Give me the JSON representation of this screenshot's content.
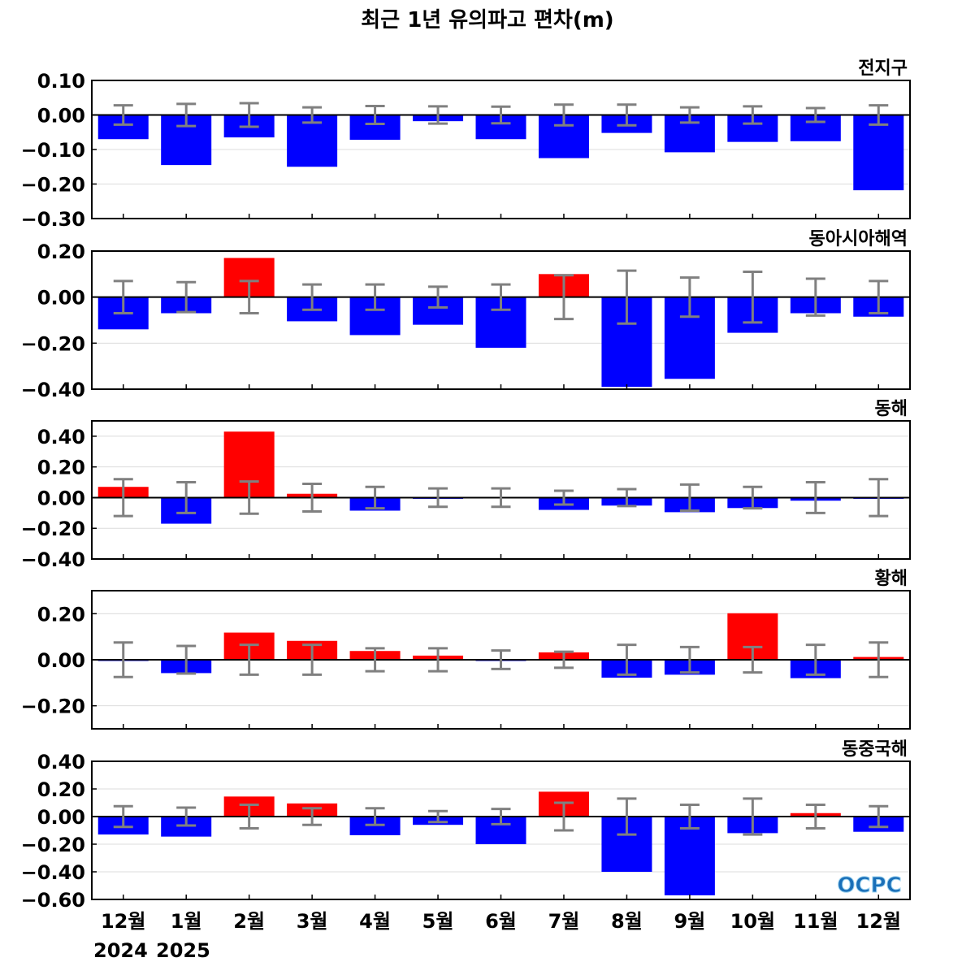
{
  "title": "최근 1년 유의파고 편차(m)",
  "logo": "OCPC",
  "colors": {
    "positive": "#ff0000",
    "negative": "#0000ff",
    "errorbar": "#808080",
    "zero_line": "#000000",
    "grid": "#dcdcdc"
  },
  "chart_data": [
    {
      "type": "bar",
      "title": "전지구",
      "categories": [
        "12월",
        "1월",
        "2월",
        "3월",
        "4월",
        "5월",
        "6월",
        "7월",
        "8월",
        "9월",
        "10월",
        "11월",
        "12월"
      ],
      "values": [
        -0.07,
        -0.145,
        -0.065,
        -0.15,
        -0.072,
        -0.018,
        -0.07,
        -0.125,
        -0.052,
        -0.108,
        -0.078,
        -0.076,
        -0.218
      ],
      "error": [
        0.028,
        0.032,
        0.034,
        0.022,
        0.026,
        0.025,
        0.024,
        0.03,
        0.03,
        0.022,
        0.025,
        0.02,
        0.028
      ],
      "ylim": [
        -0.3,
        0.1
      ],
      "yticks": [
        0.1,
        0.0,
        -0.1,
        -0.2,
        -0.3
      ],
      "ytick_labels": [
        "0.10",
        "0.00",
        "−0.10",
        "−0.20",
        "−0.30"
      ]
    },
    {
      "type": "bar",
      "title": "동아시아해역",
      "categories": [
        "12월",
        "1월",
        "2월",
        "3월",
        "4월",
        "5월",
        "6월",
        "7월",
        "8월",
        "9월",
        "10월",
        "11월",
        "12월"
      ],
      "values": [
        -0.14,
        -0.07,
        0.17,
        -0.105,
        -0.165,
        -0.12,
        -0.22,
        0.1,
        -0.39,
        -0.355,
        -0.155,
        -0.07,
        -0.085
      ],
      "error": [
        0.07,
        0.065,
        0.07,
        0.055,
        0.055,
        0.045,
        0.055,
        0.095,
        0.115,
        0.085,
        0.11,
        0.08,
        0.07
      ],
      "ylim": [
        -0.4,
        0.2
      ],
      "yticks": [
        0.2,
        0.0,
        -0.2,
        -0.4
      ],
      "ytick_labels": [
        "0.20",
        "0.00",
        "−0.20",
        "−0.40"
      ]
    },
    {
      "type": "bar",
      "title": "동해",
      "categories": [
        "12월",
        "1월",
        "2월",
        "3월",
        "4월",
        "5월",
        "6월",
        "7월",
        "8월",
        "9월",
        "10월",
        "11월",
        "12월"
      ],
      "values": [
        0.07,
        -0.17,
        0.43,
        0.025,
        -0.085,
        -0.003,
        0.005,
        -0.08,
        -0.052,
        -0.095,
        -0.068,
        -0.02,
        -0.003
      ],
      "error": [
        0.12,
        0.1,
        0.105,
        0.09,
        0.07,
        0.06,
        0.06,
        0.045,
        0.055,
        0.085,
        0.07,
        0.1,
        0.12
      ],
      "ylim": [
        -0.4,
        0.5
      ],
      "yticks": [
        0.4,
        0.2,
        0.0,
        -0.2,
        -0.4
      ],
      "ytick_labels": [
        "0.40",
        "0.20",
        "0.00",
        "−0.20",
        "−0.40"
      ]
    },
    {
      "type": "bar",
      "title": "황해",
      "categories": [
        "12월",
        "1월",
        "2월",
        "3월",
        "4월",
        "5월",
        "6월",
        "7월",
        "8월",
        "9월",
        "10월",
        "11월",
        "12월"
      ],
      "values": [
        -0.003,
        -0.058,
        0.118,
        0.082,
        0.038,
        0.018,
        -0.002,
        0.032,
        -0.078,
        -0.065,
        0.202,
        -0.08,
        0.012
      ],
      "error": [
        0.075,
        0.06,
        0.065,
        0.065,
        0.05,
        0.05,
        0.04,
        0.035,
        0.065,
        0.055,
        0.055,
        0.065,
        0.075
      ],
      "ylim": [
        -0.3,
        0.3
      ],
      "yticks": [
        0.2,
        0.0,
        -0.2
      ],
      "ytick_labels": [
        "0.20",
        "0.00",
        "−0.20"
      ]
    },
    {
      "type": "bar",
      "title": "동중국해",
      "categories": [
        "12월",
        "1월",
        "2월",
        "3월",
        "4월",
        "5월",
        "6월",
        "7월",
        "8월",
        "9월",
        "10월",
        "11월",
        "12월"
      ],
      "values": [
        -0.13,
        -0.145,
        0.145,
        0.095,
        -0.135,
        -0.06,
        -0.2,
        0.18,
        -0.4,
        -0.57,
        -0.12,
        0.025,
        -0.11
      ],
      "error": [
        0.075,
        0.065,
        0.085,
        0.06,
        0.06,
        0.04,
        0.055,
        0.1,
        0.13,
        0.085,
        0.13,
        0.085,
        0.075
      ],
      "ylim": [
        -0.6,
        0.4
      ],
      "yticks": [
        0.4,
        0.2,
        0.0,
        -0.2,
        -0.4,
        -0.6
      ],
      "ytick_labels": [
        "0.40",
        "0.20",
        "0.00",
        "−0.20",
        "−0.40",
        "−0.60"
      ]
    }
  ],
  "x_axis": {
    "labels": [
      "12월",
      "1월",
      "2월",
      "3월",
      "4월",
      "5월",
      "6월",
      "7월",
      "8월",
      "9월",
      "10월",
      "11월",
      "12월"
    ],
    "years": [
      "2024",
      "2025"
    ]
  }
}
